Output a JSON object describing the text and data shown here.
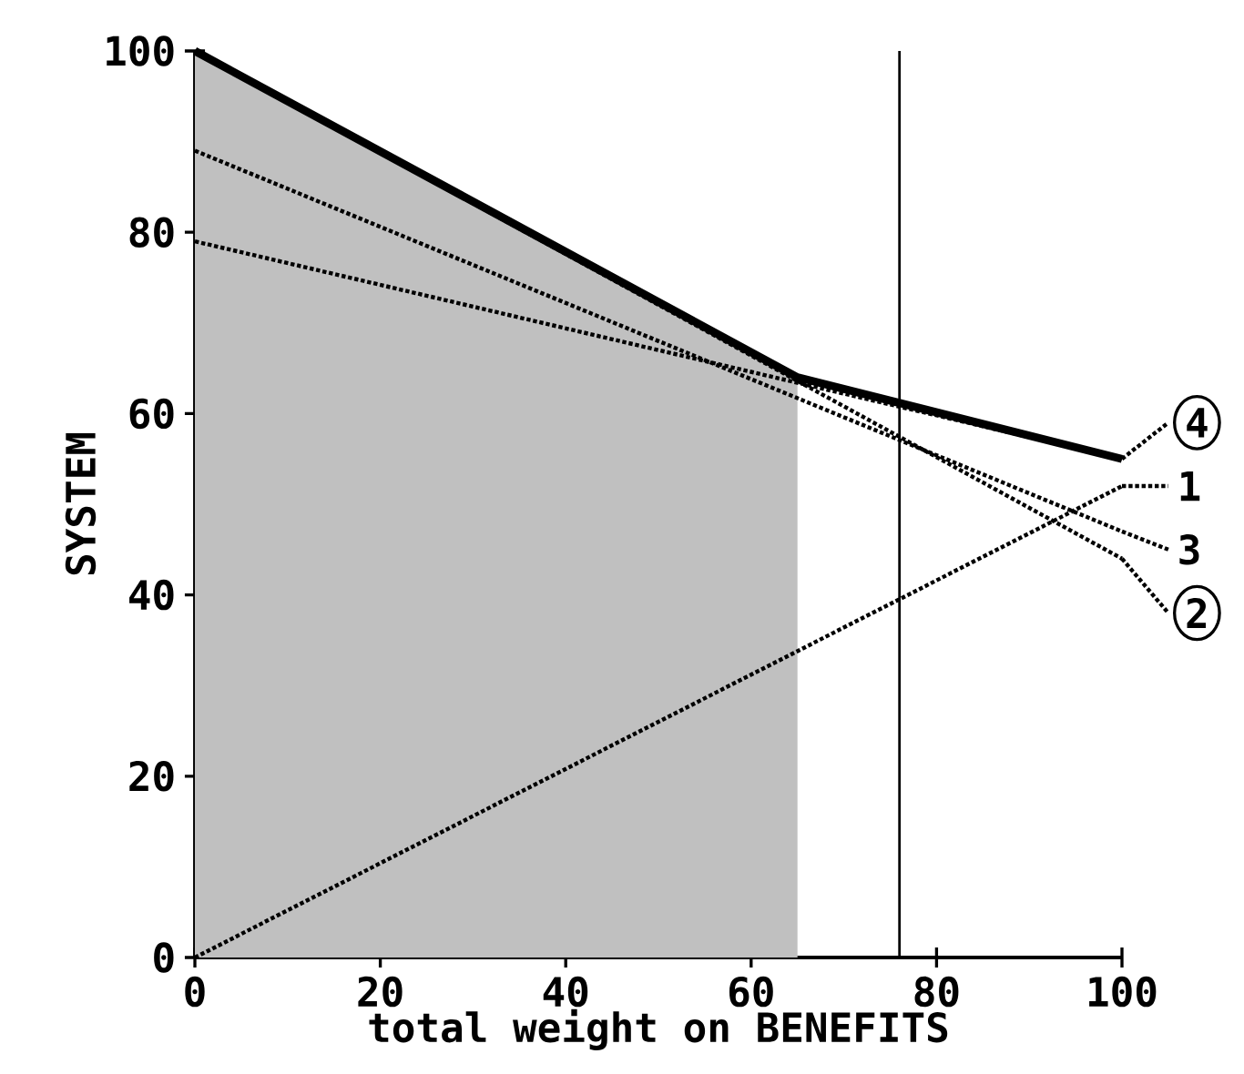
{
  "chart_data": {
    "type": "line",
    "xlabel": "total weight on BENEFITS",
    "ylabel": "SYSTEM",
    "xlim": [
      0,
      100
    ],
    "ylim": [
      0,
      100
    ],
    "xticks": [
      0,
      20,
      40,
      60,
      80,
      100
    ],
    "yticks": [
      0,
      20,
      40,
      60,
      80,
      100
    ],
    "grid": false,
    "legend": "right",
    "series": [
      {
        "type": "area",
        "color": "#c0c0c0",
        "x": [
          0,
          65
        ],
        "values": [
          100,
          64
        ]
      },
      {
        "name": "4",
        "color": "#000000",
        "line_style": "dotted",
        "x": [
          0,
          100
        ],
        "values": [
          79,
          55
        ]
      },
      {
        "name": "1",
        "color": "#000000",
        "line_style": "dotted",
        "x": [
          0,
          100
        ],
        "values": [
          0,
          52
        ]
      },
      {
        "name": "3",
        "color": "#000000",
        "line_style": "dotted",
        "x": [
          0,
          100
        ],
        "values": [
          89,
          47
        ]
      },
      {
        "name": "2",
        "color": "#000000",
        "line_style": "dotted",
        "x": [
          0,
          100
        ],
        "values": [
          100,
          44
        ]
      },
      {
        "color": "#000000",
        "line_style": "solid",
        "x": [
          0,
          65,
          100
        ],
        "values": [
          100,
          64,
          55
        ]
      }
    ],
    "ref_lines": [
      {
        "axis": "x",
        "value": 76,
        "color": "#000000"
      }
    ]
  }
}
